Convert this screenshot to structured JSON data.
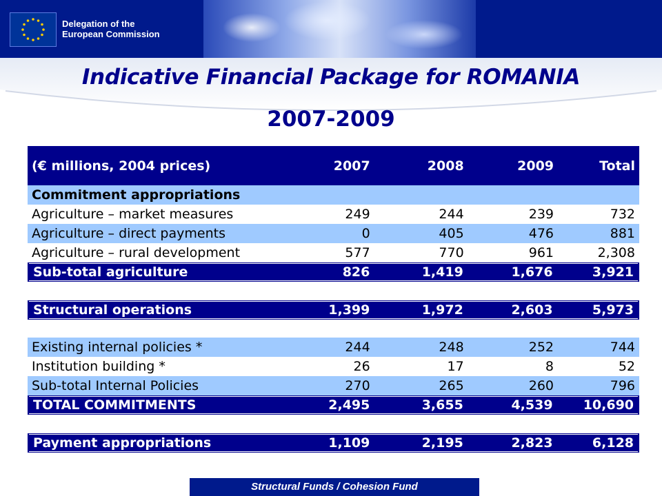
{
  "header": {
    "org_line1": "Delegation of the",
    "org_line2": "European Commission"
  },
  "title": {
    "main": "Indicative Financial Package for ROMANIA",
    "years": "2007-2009"
  },
  "colors": {
    "header_navy": "#001a8c",
    "table_navy": "#00008c",
    "row_light_blue": "#9fcaff"
  },
  "table": {
    "columns": [
      "(€ millions, 2004 prices)",
      "2007",
      "2008",
      "2009",
      "Total"
    ],
    "section_commitment": "Commitment appropriations",
    "rows": [
      {
        "label": "Agriculture – market measures",
        "v2007": "249",
        "v2008": "244",
        "v2009": "239",
        "total": "732"
      },
      {
        "label": "Agriculture – direct payments",
        "v2007": "0",
        "v2008": "405",
        "v2009": "476",
        "total": "881"
      },
      {
        "label": "Agriculture – rural development",
        "v2007": "577",
        "v2008": "770",
        "v2009": "961",
        "total": "2,308"
      },
      {
        "label": "Sub-total agriculture",
        "v2007": "826",
        "v2008": "1,419",
        "v2009": "1,676",
        "total": "3,921"
      },
      {
        "label": "Structural operations",
        "v2007": "1,399",
        "v2008": "1,972",
        "v2009": "2,603",
        "total": "5,973"
      },
      {
        "label": "Existing internal policies *",
        "v2007": "244",
        "v2008": "248",
        "v2009": "252",
        "total": "744"
      },
      {
        "label": "Institution building *",
        "v2007": "26",
        "v2008": "17",
        "v2009": "8",
        "total": "52"
      },
      {
        "label": "Sub-total Internal Policies",
        "v2007": "270",
        "v2008": "265",
        "v2009": "260",
        "total": "796"
      },
      {
        "label": "TOTAL COMMITMENTS",
        "v2007": "2,495",
        "v2008": "3,655",
        "v2009": "4,539",
        "total": "10,690"
      },
      {
        "label": "Payment appropriations",
        "v2007": "1,109",
        "v2008": "2,195",
        "v2009": "2,823",
        "total": "6,128"
      }
    ]
  },
  "footer": {
    "text": "Structural Funds / Cohesion Fund"
  }
}
